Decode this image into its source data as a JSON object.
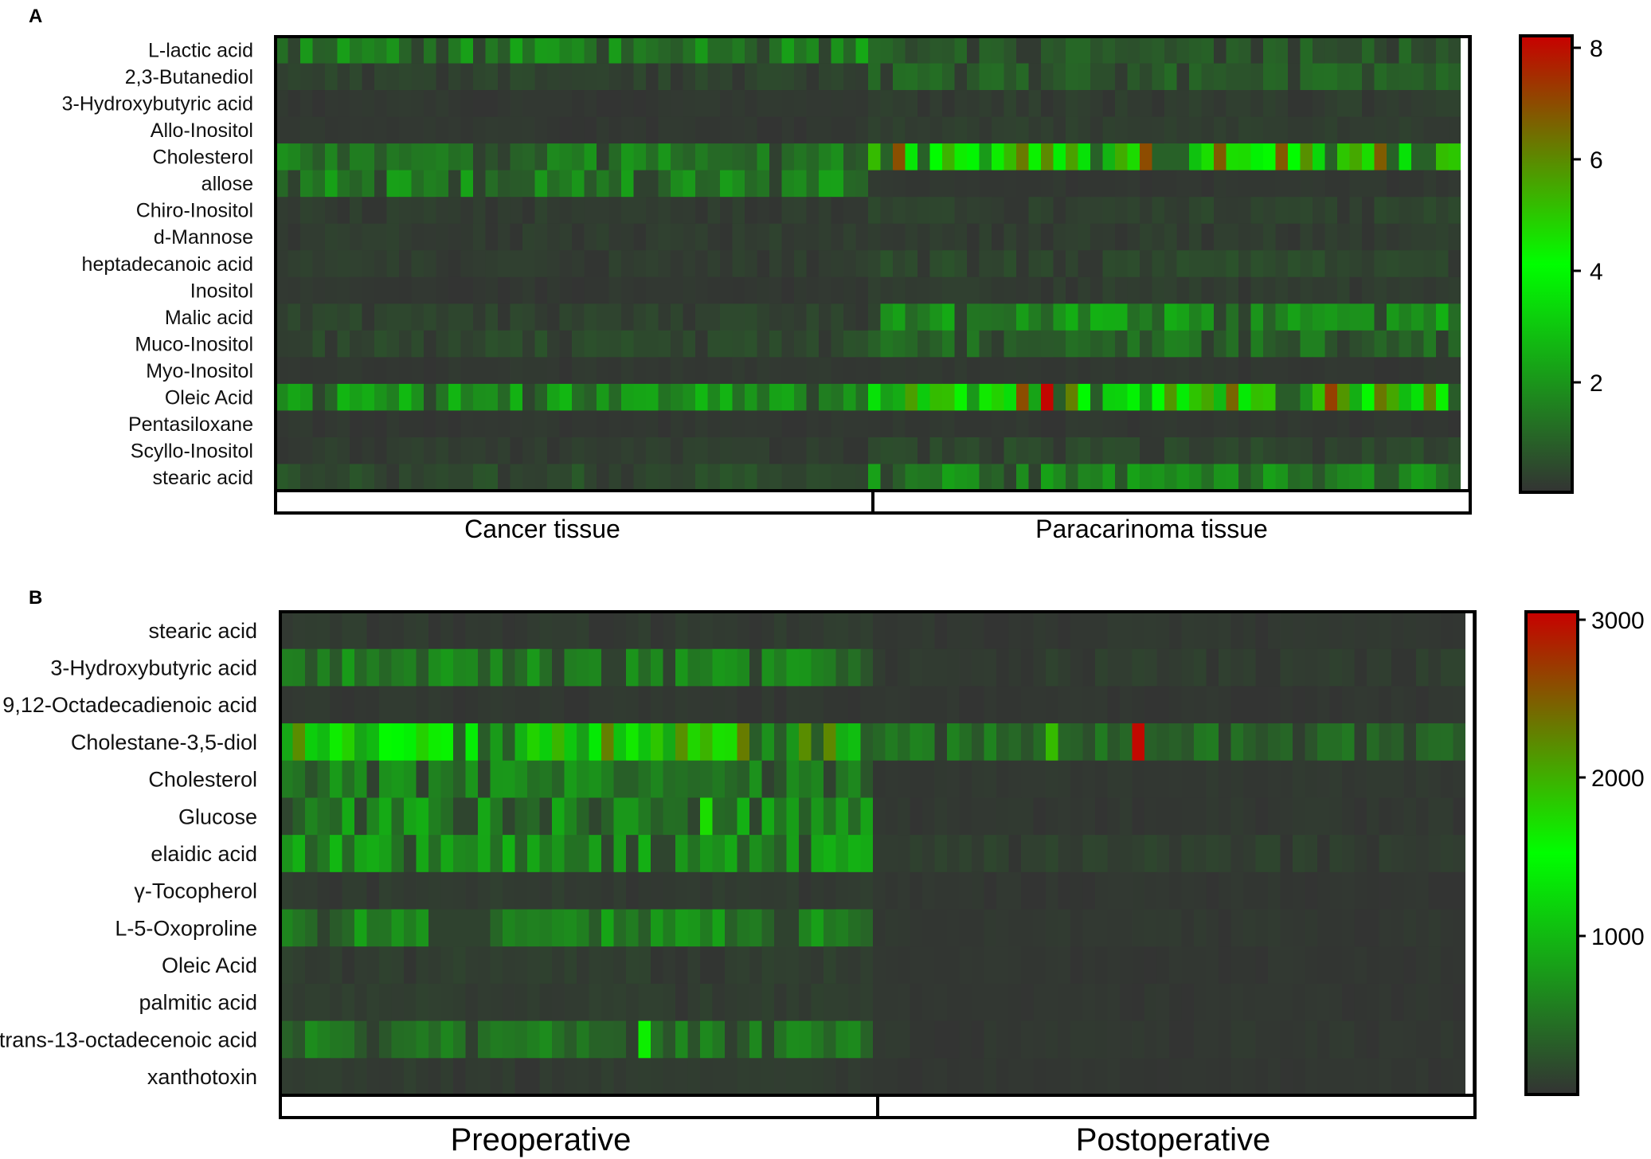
{
  "figure": {
    "panels": [
      {
        "panel_label": "A",
        "rows": [
          "L-lactic acid",
          "2,3-Butanediol",
          "3-Hydroxybutyric acid",
          "Allo-Inositol",
          "Cholesterol",
          "allose",
          "Chiro-Inositol",
          "d-Mannose",
          "heptadecanoic acid",
          "Inositol",
          "Malic acid",
          "Muco-Inositol",
          "Myo-Inositol",
          "Oleic Acid",
          "Pentasiloxane",
          "Scyllo-Inositol",
          "stearic acid"
        ],
        "groups": [
          "Cancer tissue",
          "Paracarinoma tissue"
        ],
        "colorbar_ticks": [
          "8",
          "6",
          "4",
          "2"
        ]
      },
      {
        "panel_label": "B",
        "rows": [
          "stearic acid",
          "3-Hydroxybutyric acid",
          "9,12-Octadecadienoic acid",
          "Cholestane-3,5-diol",
          "Cholesterol",
          "Glucose",
          "elaidic acid",
          "γ-Tocopherol",
          "L-5-Oxoproline",
          "Oleic Acid",
          "palmitic acid",
          "trans-13-octadecenoic acid",
          "xanthotoxin"
        ],
        "groups": [
          "Preoperative",
          "Postoperative"
        ],
        "colorbar_ticks": [
          "3000",
          "2000",
          "1000"
        ]
      }
    ]
  },
  "chart_data": [
    {
      "type": "heatmap",
      "panel": "A",
      "rows": [
        "L-lactic acid",
        "2,3-Butanediol",
        "3-Hydroxybutyric acid",
        "Allo-Inositol",
        "Cholesterol",
        "allose",
        "Chiro-Inositol",
        "d-Mannose",
        "heptadecanoic acid",
        "Inositol",
        "Malic acid",
        "Muco-Inositol",
        "Myo-Inositol",
        "Oleic Acid",
        "Pentasiloxane",
        "Scyllo-Inositol",
        "stearic acid"
      ],
      "columns_per_group": [
        48,
        48
      ],
      "groups": [
        "Cancer tissue",
        "Paracarinoma tissue"
      ],
      "approx_row_means": {
        "Cancer tissue": [
          1.6,
          0.3,
          0.1,
          0.1,
          1.3,
          1.4,
          0.2,
          0.2,
          0.2,
          0.1,
          0.3,
          0.4,
          0.1,
          1.8,
          0.1,
          0.2,
          0.5
        ],
        "Paracarinoma tissue": [
          0.7,
          0.8,
          0.2,
          0.2,
          4.5,
          0.1,
          0.3,
          0.2,
          0.4,
          0.2,
          1.6,
          1.0,
          0.1,
          4.0,
          0.1,
          0.4,
          1.4
        ]
      },
      "color_scale": {
        "min": 0,
        "max": 8,
        "colors": [
          "#333333",
          "#00ff00",
          "#cc0000"
        ]
      },
      "ticks": [
        2,
        4,
        6,
        8
      ]
    },
    {
      "type": "heatmap",
      "panel": "B",
      "rows": [
        "stearic acid",
        "3-Hydroxybutyric acid",
        "9,12-Octadecadienoic acid",
        "Cholestane-3,5-diol",
        "Cholesterol",
        "Glucose",
        "elaidic acid",
        "γ-Tocopherol",
        "L-5-Oxoproline",
        "Oleic Acid",
        "palmitic acid",
        "trans-13-octadecenoic acid",
        "xanthotoxin"
      ],
      "columns_per_group": [
        48,
        48
      ],
      "groups": [
        "Preoperative",
        "Postoperative"
      ],
      "approx_row_means": {
        "Preoperative": [
          60,
          500,
          40,
          1500,
          500,
          650,
          650,
          60,
          560,
          80,
          70,
          430,
          60
        ],
        "Postoperative": [
          40,
          80,
          30,
          400,
          40,
          40,
          90,
          30,
          40,
          30,
          30,
          40,
          30
        ]
      },
      "color_scale": {
        "min": 0,
        "max": 3000,
        "colors": [
          "#333333",
          "#00ff00",
          "#cc0000"
        ]
      },
      "ticks": [
        1000,
        2000,
        3000
      ]
    }
  ]
}
